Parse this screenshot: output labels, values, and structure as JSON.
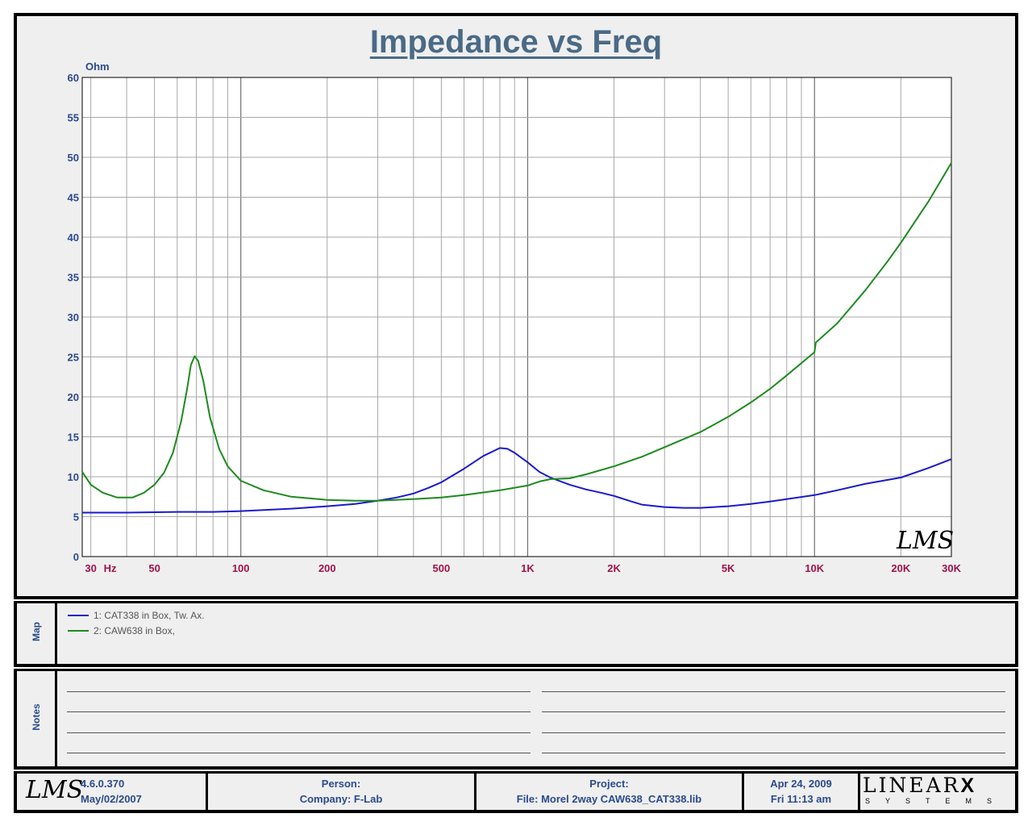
{
  "chart_data": {
    "type": "line",
    "title": "Impedance vs Freq",
    "ylabel": "Ohm",
    "y_unit": "Ohm",
    "x_scale": "log",
    "xlim": [
      28,
      30000
    ],
    "ylim": [
      0,
      60
    ],
    "y_ticks": [
      "0",
      "5",
      "10",
      "15",
      "20",
      "25",
      "30",
      "35",
      "40",
      "45",
      "50",
      "55",
      "60"
    ],
    "x_tick_labels": [
      {
        "value": 30,
        "label": "30"
      },
      {
        "value": 50,
        "label": "50"
      },
      {
        "value": 100,
        "label": "100"
      },
      {
        "value": 200,
        "label": "200"
      },
      {
        "value": 500,
        "label": "500"
      },
      {
        "value": 1000,
        "label": "1K"
      },
      {
        "value": 2000,
        "label": "2K"
      },
      {
        "value": 5000,
        "label": "5K"
      },
      {
        "value": 10000,
        "label": "10K"
      },
      {
        "value": 20000,
        "label": "20K"
      },
      {
        "value": 30000,
        "label": "30K"
      }
    ],
    "x_unit_label": "Hz",
    "grid": true,
    "series": [
      {
        "name": "1: CAT338 in Box, Tw. Ax.",
        "color": "#1a1acc",
        "points": [
          [
            28,
            5.5
          ],
          [
            40,
            5.5
          ],
          [
            60,
            5.6
          ],
          [
            80,
            5.6
          ],
          [
            100,
            5.7
          ],
          [
            150,
            6.0
          ],
          [
            200,
            6.3
          ],
          [
            250,
            6.6
          ],
          [
            300,
            7.0
          ],
          [
            350,
            7.4
          ],
          [
            400,
            7.9
          ],
          [
            450,
            8.6
          ],
          [
            500,
            9.3
          ],
          [
            600,
            11.0
          ],
          [
            700,
            12.6
          ],
          [
            800,
            13.6
          ],
          [
            850,
            13.5
          ],
          [
            900,
            13.0
          ],
          [
            1000,
            11.8
          ],
          [
            1100,
            10.6
          ],
          [
            1200,
            9.9
          ],
          [
            1400,
            9.0
          ],
          [
            1600,
            8.4
          ],
          [
            1800,
            8.0
          ],
          [
            2000,
            7.6
          ],
          [
            2300,
            6.9
          ],
          [
            2500,
            6.5
          ],
          [
            3000,
            6.2
          ],
          [
            3500,
            6.1
          ],
          [
            4000,
            6.1
          ],
          [
            5000,
            6.3
          ],
          [
            6000,
            6.6
          ],
          [
            7000,
            6.9
          ],
          [
            8000,
            7.2
          ],
          [
            10000,
            7.7
          ],
          [
            12000,
            8.3
          ],
          [
            15000,
            9.1
          ],
          [
            20000,
            9.9
          ],
          [
            25000,
            11.1
          ],
          [
            30000,
            12.2
          ]
        ]
      },
      {
        "name": "2: CAW638 in Box,",
        "color": "#1e8a1e",
        "points": [
          [
            28,
            10.6
          ],
          [
            30,
            9.0
          ],
          [
            33,
            8.0
          ],
          [
            37,
            7.4
          ],
          [
            42,
            7.4
          ],
          [
            46,
            8.0
          ],
          [
            50,
            9.0
          ],
          [
            54,
            10.5
          ],
          [
            58,
            13.0
          ],
          [
            62,
            17.0
          ],
          [
            65,
            21.0
          ],
          [
            67,
            24.0
          ],
          [
            69,
            25.1
          ],
          [
            71,
            24.5
          ],
          [
            74,
            22.0
          ],
          [
            78,
            17.5
          ],
          [
            84,
            13.5
          ],
          [
            90,
            11.3
          ],
          [
            100,
            9.5
          ],
          [
            120,
            8.3
          ],
          [
            150,
            7.5
          ],
          [
            200,
            7.1
          ],
          [
            250,
            7.0
          ],
          [
            300,
            7.0
          ],
          [
            400,
            7.2
          ],
          [
            500,
            7.4
          ],
          [
            600,
            7.7
          ],
          [
            800,
            8.3
          ],
          [
            1000,
            8.9
          ],
          [
            1100,
            9.4
          ],
          [
            1200,
            9.7
          ],
          [
            1400,
            9.8
          ],
          [
            1600,
            10.3
          ],
          [
            2000,
            11.3
          ],
          [
            2500,
            12.5
          ],
          [
            3000,
            13.7
          ],
          [
            4000,
            15.6
          ],
          [
            5000,
            17.5
          ],
          [
            6000,
            19.3
          ],
          [
            7000,
            21.0
          ],
          [
            8000,
            22.7
          ],
          [
            10000,
            25.6
          ],
          [
            10100,
            26.8
          ],
          [
            12000,
            29.2
          ],
          [
            15000,
            33.3
          ],
          [
            18000,
            37.0
          ],
          [
            20000,
            39.3
          ],
          [
            25000,
            44.5
          ],
          [
            30000,
            49.3
          ]
        ]
      }
    ],
    "watermark": "LMS"
  },
  "map": {
    "label": "Map",
    "entries": [
      {
        "text": "1: CAT338 in Box, Tw. Ax.",
        "color": "#1a1acc"
      },
      {
        "text": "2: CAW638 in Box,",
        "color": "#1e8a1e"
      }
    ]
  },
  "notes": {
    "label": "Notes"
  },
  "footer": {
    "logo": "LMS",
    "version": "4.6.0.370",
    "version_date": "May/02/2007",
    "person_label": "Person:",
    "company": "Company: F-Lab",
    "project_label": "Project:",
    "file": "File: Morel 2way CAW638_CAT338.lib",
    "date": "Apr 24, 2009",
    "time": "Fri 11:13 am",
    "brand": "LINEAR",
    "brand_x": "X",
    "brand_sub": "SYSTEMS"
  },
  "colors": {
    "title": "#4a6a86",
    "axis_text_y": "#2a4a8a",
    "axis_text_x": "#a0124a",
    "grid": "#a0a0a0",
    "background": "#efefef"
  }
}
